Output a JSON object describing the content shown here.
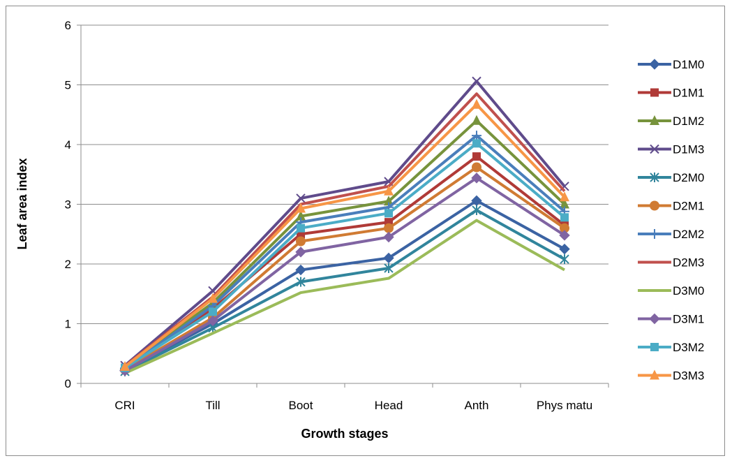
{
  "chart_data": {
    "type": "line",
    "title": "",
    "xlabel": "Growth stages",
    "ylabel": "Leaf area index",
    "categories": [
      "CRI",
      "Till",
      "Boot",
      "Head",
      "Anth",
      "Phys matu"
    ],
    "ylim": [
      0,
      6
    ],
    "yticks": [
      "0",
      "1",
      "2",
      "3",
      "4",
      "5",
      "6"
    ],
    "grid": "horizontal",
    "legend": "right",
    "series": [
      {
        "name": "D1M0",
        "color": "#3b63a3",
        "marker": "diamond",
        "values": [
          0.22,
          1.0,
          1.9,
          2.1,
          3.06,
          2.25
        ]
      },
      {
        "name": "D1M1",
        "color": "#b03a37",
        "marker": "square",
        "values": [
          0.26,
          1.25,
          2.5,
          2.7,
          3.8,
          2.65
        ]
      },
      {
        "name": "D1M2",
        "color": "#77933c",
        "marker": "triangle",
        "values": [
          0.27,
          1.35,
          2.8,
          3.05,
          4.4,
          3.0
        ]
      },
      {
        "name": "D1M3",
        "color": "#5f4b8b",
        "marker": "x",
        "values": [
          0.3,
          1.55,
          3.1,
          3.38,
          5.06,
          3.3
        ]
      },
      {
        "name": "D2M0",
        "color": "#31859c",
        "marker": "star",
        "values": [
          0.2,
          0.93,
          1.7,
          1.93,
          2.9,
          2.08
        ]
      },
      {
        "name": "D2M1",
        "color": "#d07b33",
        "marker": "circle",
        "values": [
          0.23,
          1.1,
          2.38,
          2.6,
          3.62,
          2.6
        ]
      },
      {
        "name": "D2M2",
        "color": "#4a7ebb",
        "marker": "plus",
        "values": [
          0.25,
          1.3,
          2.7,
          2.95,
          4.15,
          2.88
        ]
      },
      {
        "name": "D2M3",
        "color": "#c0504d",
        "marker": "none",
        "values": [
          0.29,
          1.45,
          3.0,
          3.3,
          4.85,
          3.22
        ]
      },
      {
        "name": "D3M0",
        "color": "#9bbb59",
        "marker": "none",
        "values": [
          0.17,
          0.84,
          1.52,
          1.76,
          2.73,
          1.9
        ]
      },
      {
        "name": "D3M1",
        "color": "#8064a2",
        "marker": "diamond",
        "values": [
          0.21,
          1.05,
          2.2,
          2.45,
          3.44,
          2.48
        ]
      },
      {
        "name": "D3M2",
        "color": "#4bacc6",
        "marker": "square",
        "values": [
          0.26,
          1.2,
          2.6,
          2.85,
          4.02,
          2.78
        ]
      },
      {
        "name": "D3M3",
        "color": "#f79646",
        "marker": "triangle",
        "values": [
          0.28,
          1.42,
          2.93,
          3.22,
          4.67,
          3.12
        ]
      }
    ]
  }
}
